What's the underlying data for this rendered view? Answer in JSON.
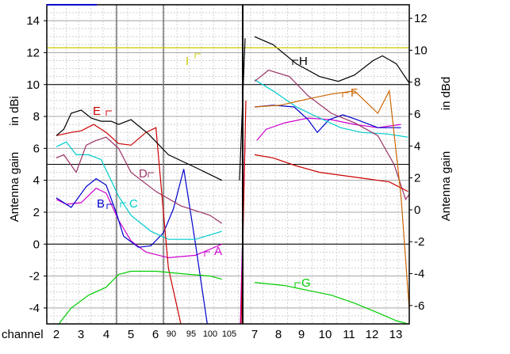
{
  "chart_data": {
    "type": "line",
    "left_axis": {
      "title_line1": "Antenna gain",
      "title_line2": "in dBi",
      "ylim": [
        -5,
        15
      ],
      "ticks": [
        "14",
        "12",
        "10",
        "8",
        "6",
        "4",
        "2",
        "0",
        "-2",
        "-4"
      ]
    },
    "right_axis": {
      "title_line1": "Antenna gain",
      "title_line2": "in dBd",
      "ticks": [
        "12",
        "10",
        "8",
        "6",
        "4",
        "2",
        "0",
        "-2",
        "-4",
        "-6"
      ]
    },
    "x_axis": {
      "title": "channel",
      "tick_labels": [
        "2",
        "3",
        "4",
        "5",
        "6",
        "7",
        "8",
        "9",
        "10",
        "11",
        "12",
        "13"
      ],
      "small_tick_labels": [
        "90",
        "95",
        "100",
        "105"
      ]
    },
    "grid": true,
    "series": [
      {
        "name": "A",
        "color": "#cc00cc",
        "low": [
          [
            2,
            2.8
          ],
          [
            2.4,
            2.5
          ],
          [
            3,
            2.6
          ],
          [
            3.6,
            3.5
          ],
          [
            4,
            3.2
          ],
          [
            4.5,
            1.5
          ],
          [
            5,
            0.2
          ],
          [
            5.6,
            -0.5
          ],
          [
            6.5,
            -0.85
          ],
          [
            7.5,
            -0.7
          ],
          [
            8.4,
            0
          ]
        ],
        "high": [
          [
            6.8,
            6.5
          ],
          [
            7.2,
            7.2
          ],
          [
            8,
            7.6
          ],
          [
            9,
            7.9
          ],
          [
            10,
            7.8
          ],
          [
            11,
            7.5
          ],
          [
            12,
            7.3
          ],
          [
            13,
            7.5
          ]
        ]
      },
      {
        "name": "B",
        "color": "#0000cc",
        "low": [
          [
            2,
            2.9
          ],
          [
            2.6,
            2.3
          ],
          [
            3.2,
            3.6
          ],
          [
            3.6,
            4.1
          ],
          [
            4,
            3.7
          ],
          [
            4.4,
            2.0
          ],
          [
            4.7,
            0.5
          ],
          [
            5.3,
            -0.2
          ],
          [
            5.8,
            -0.1
          ],
          [
            6.3,
            0.7
          ],
          [
            6.7,
            2.2
          ],
          [
            7.1,
            4.7
          ],
          [
            7.5,
            0
          ],
          [
            7.9,
            -5
          ]
        ],
        "high": [
          [
            6.7,
            8.6
          ],
          [
            7.5,
            8.7
          ],
          [
            8.4,
            8.6
          ],
          [
            9,
            7.8
          ],
          [
            9.4,
            7.0
          ],
          [
            9.9,
            7.8
          ],
          [
            10.5,
            8.1
          ],
          [
            11.1,
            7.8
          ],
          [
            12,
            7.3
          ],
          [
            13,
            7.3
          ]
        ]
      },
      {
        "name": "C",
        "color": "#00cccc",
        "low": [
          [
            2,
            6.1
          ],
          [
            2.4,
            6.4
          ],
          [
            2.8,
            5.6
          ],
          [
            3.3,
            5.6
          ],
          [
            3.8,
            5.3
          ],
          [
            4.2,
            4.0
          ],
          [
            4.5,
            3.0
          ],
          [
            5,
            1.8
          ],
          [
            5.8,
            0.8
          ],
          [
            6.5,
            0.3
          ],
          [
            7.5,
            0.3
          ],
          [
            8.4,
            0.8
          ]
        ],
        "high": [
          [
            6.7,
            10.3
          ],
          [
            7.5,
            9.6
          ],
          [
            8.5,
            8.6
          ],
          [
            9.2,
            8.1
          ],
          [
            10.4,
            7.3
          ],
          [
            11.3,
            7.0
          ],
          [
            12.4,
            6.9
          ],
          [
            13.3,
            6.7
          ]
        ]
      },
      {
        "name": "D",
        "color": "#993366",
        "low": [
          [
            2,
            5.4
          ],
          [
            2.3,
            5.6
          ],
          [
            2.8,
            4.5
          ],
          [
            3.2,
            6.2
          ],
          [
            3.6,
            6.5
          ],
          [
            4,
            6.7
          ],
          [
            4.5,
            6.0
          ],
          [
            5,
            4.5
          ],
          [
            6,
            3.3
          ],
          [
            7,
            2.4
          ],
          [
            8,
            1.8
          ],
          [
            8.4,
            1.3
          ]
        ],
        "high": [
          [
            6.7,
            10.2
          ],
          [
            7.3,
            10.9
          ],
          [
            8.2,
            10.5
          ],
          [
            9,
            9.3
          ],
          [
            10,
            8.2
          ],
          [
            11,
            7.6
          ],
          [
            12,
            6.8
          ],
          [
            12.7,
            5.0
          ],
          [
            13.2,
            2.8
          ],
          [
            13.5,
            3.4
          ]
        ]
      },
      {
        "name": "E",
        "color": "#cc0000",
        "low": [
          [
            2,
            6.8
          ],
          [
            2.6,
            7.0
          ],
          [
            3,
            7.1
          ],
          [
            3.5,
            7.5
          ],
          [
            4,
            7.0
          ],
          [
            4.5,
            6.3
          ],
          [
            5,
            6.2
          ],
          [
            5.6,
            7.0
          ],
          [
            6,
            7.3
          ],
          [
            6.5,
            -1.5
          ],
          [
            7,
            -5
          ]
        ],
        "high": [
          [
            6.7,
            5.6
          ],
          [
            7.5,
            5.4
          ],
          [
            8.5,
            4.9
          ],
          [
            9.5,
            4.5
          ],
          [
            10.5,
            4.3
          ],
          [
            11.5,
            4.1
          ],
          [
            12.5,
            3.9
          ],
          [
            13.3,
            3.3
          ]
        ]
      },
      {
        "name": "F",
        "color": "#cc6600",
        "high": [
          [
            6.7,
            8.6
          ],
          [
            7.8,
            8.7
          ],
          [
            9,
            9.1
          ],
          [
            10,
            9.4
          ],
          [
            11,
            9.6
          ],
          [
            12,
            8.2
          ],
          [
            12.5,
            9.6
          ],
          [
            13,
            3.0
          ],
          [
            13.4,
            -5
          ]
        ]
      },
      {
        "name": "G",
        "color": "#00cc00",
        "full": [
          [
            2,
            -5.2
          ],
          [
            2.6,
            -4.0
          ],
          [
            3.3,
            -3.2
          ],
          [
            4,
            -2.7
          ],
          [
            4.5,
            -1.9
          ],
          [
            5,
            -1.7
          ],
          [
            6,
            -1.7
          ],
          [
            7,
            -1.85
          ],
          [
            8,
            -2.0
          ],
          [
            8.4,
            -2.2
          ],
          [
            6.7,
            -2.4
          ],
          [
            8,
            -2.6
          ],
          [
            9,
            -2.9
          ],
          [
            10,
            -3.2
          ],
          [
            11,
            -3.7
          ],
          [
            12,
            -4.3
          ],
          [
            12.8,
            -4.8
          ],
          [
            13.3,
            -5.0
          ]
        ]
      },
      {
        "name": "H",
        "color": "#000000",
        "low": [
          [
            2,
            6.8
          ],
          [
            2.3,
            7.2
          ],
          [
            2.6,
            8.2
          ],
          [
            3,
            8.4
          ],
          [
            3.4,
            7.9
          ],
          [
            3.8,
            7.7
          ],
          [
            4.2,
            7.7
          ],
          [
            4.5,
            7.5
          ],
          [
            5,
            7.8
          ],
          [
            5.7,
            6.9
          ],
          [
            6.5,
            5.6
          ],
          [
            7.5,
            4.8
          ],
          [
            8.4,
            4.0
          ]
        ],
        "high": [
          [
            6.7,
            13.0
          ],
          [
            7.5,
            12.5
          ],
          [
            8.5,
            11.3
          ],
          [
            9.5,
            10.5
          ],
          [
            10.3,
            10.2
          ],
          [
            11,
            10.6
          ],
          [
            11.8,
            11.5
          ],
          [
            12.2,
            11.8
          ],
          [
            12.8,
            11.3
          ],
          [
            13.4,
            10.0
          ]
        ]
      },
      {
        "name": "I",
        "color": "#cccc00",
        "full": [
          [
            1.6,
            12.3
          ],
          [
            13.6,
            12.3
          ]
        ]
      }
    ]
  }
}
